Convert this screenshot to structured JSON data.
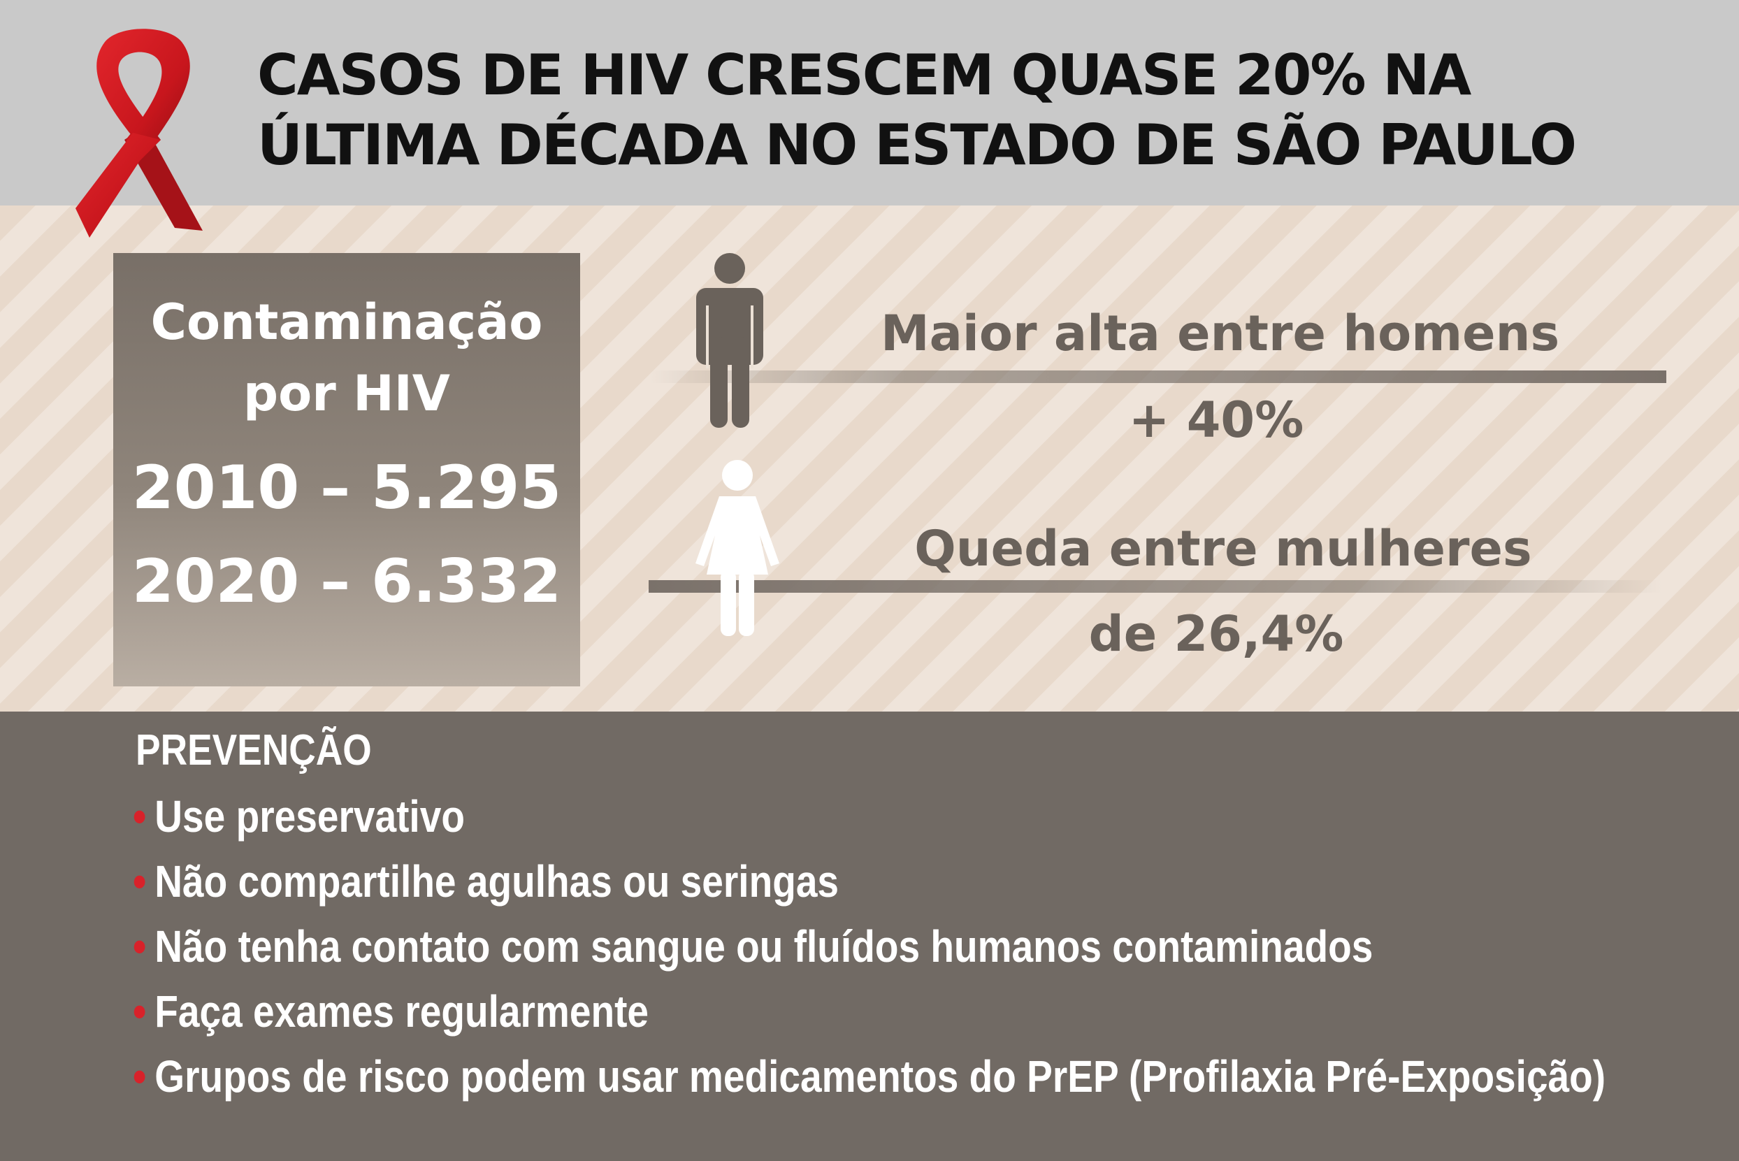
{
  "header": {
    "title_line1": "CASOS DE HIV CRESCEM QUASE 20% NA",
    "title_line2": "ÚLTIMA DÉCADA NO ESTADO DE SÃO PAULO",
    "ribbon_icon": "aids-awareness-red-ribbon-icon",
    "ribbon_color": "#c8161d"
  },
  "stats": {
    "title_line1": "Contaminação",
    "title_line2": "por HIV",
    "line_2010": "2010 – 5.295",
    "line_2020": "2020 – 6.332"
  },
  "men": {
    "icon": "man-icon",
    "label": "Maior alta entre homens",
    "value": "+ 40%"
  },
  "women": {
    "icon": "woman-icon",
    "label": "Queda entre mulheres",
    "value": "de 26,4%"
  },
  "prevention": {
    "title": "PREVENÇÃO",
    "bullet_color": "#d8222a",
    "items": [
      "Use preservativo",
      "Não compartilhe agulhas ou seringas",
      "Não tenha contato com sangue ou fluídos humanos contaminados",
      "Faça exames regularmente",
      "Grupos de risco podem usar medicamentos do PrEP (Profilaxia Pré-Exposição)"
    ]
  }
}
